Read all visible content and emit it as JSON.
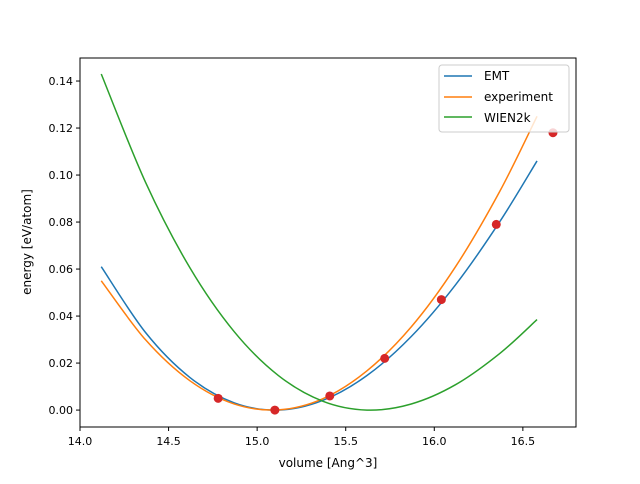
{
  "chart_data": {
    "type": "line",
    "title": "",
    "xlabel": "volume [Ang^3]",
    "ylabel": "energy [eV/atom]",
    "xlim": [
      14.0,
      16.8
    ],
    "ylim": [
      -0.0072,
      0.1498
    ],
    "xticks": [
      "14.0",
      "14.5",
      "15.0",
      "15.5",
      "16.0",
      "16.5"
    ],
    "yticks": [
      "0.00",
      "0.02",
      "0.04",
      "0.06",
      "0.08",
      "0.10",
      "0.12",
      "0.14"
    ],
    "grid": false,
    "legend_position": "top-right",
    "series": [
      {
        "name": "EMT",
        "color": "#1f77b4",
        "x": [
          14.12,
          14.37,
          14.62,
          14.87,
          15.12,
          15.37,
          15.62,
          15.87,
          16.12,
          16.37,
          16.58
        ],
        "y": [
          0.061,
          0.033,
          0.0139,
          0.0031,
          0.0,
          0.0041,
          0.0147,
          0.0313,
          0.0533,
          0.0802,
          0.106
        ]
      },
      {
        "name": "experiment",
        "color": "#ff7f0e",
        "x": [
          14.12,
          14.37,
          14.62,
          14.87,
          15.12,
          15.37,
          15.62,
          15.87,
          16.12,
          16.37,
          16.58
        ],
        "y": [
          0.055,
          0.0299,
          0.0125,
          0.0026,
          0.0001,
          0.0048,
          0.0167,
          0.0354,
          0.061,
          0.0931,
          0.125
        ]
      },
      {
        "name": "WIEN2k",
        "color": "#2ca02c",
        "x": [
          14.12,
          14.37,
          14.62,
          14.87,
          15.12,
          15.37,
          15.62,
          15.87,
          16.12,
          16.37,
          16.58
        ],
        "y": [
          0.143,
          0.0969,
          0.0606,
          0.0334,
          0.0147,
          0.0038,
          0.0,
          0.0026,
          0.0108,
          0.0241,
          0.0385
        ]
      }
    ],
    "points": {
      "color": "#d62728",
      "x": [
        14.78,
        15.1,
        15.41,
        15.72,
        16.04,
        16.35,
        16.67
      ],
      "y": [
        0.005,
        0.0,
        0.006,
        0.022,
        0.047,
        0.079,
        0.118
      ]
    }
  }
}
